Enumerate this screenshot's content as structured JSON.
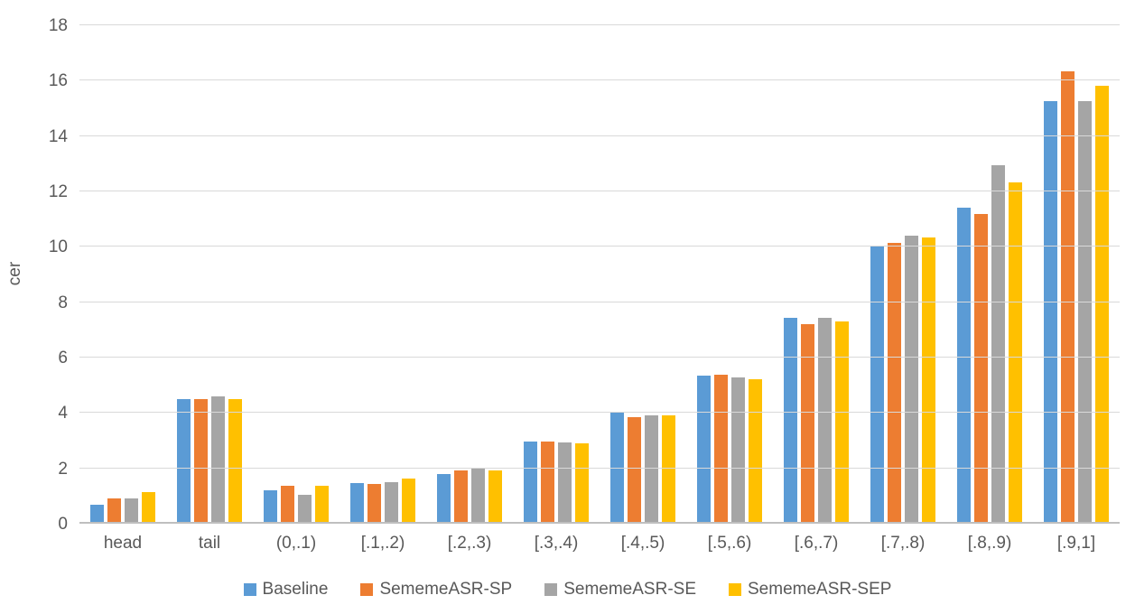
{
  "chart_data": {
    "type": "bar",
    "title": "",
    "xlabel": "",
    "ylabel": "cer",
    "ylim": [
      0,
      18
    ],
    "ytick_step": 2,
    "grid": true,
    "legend_position": "bottom",
    "gridline_color": "#d9d9d9",
    "axis_line_color": "#bfbfbf",
    "text_color": "#595959",
    "categories": [
      "head",
      "tail",
      "(0,.1)",
      "[.1,.2)",
      "[.2,.3)",
      "[.3,.4)",
      "[.4,.5)",
      "[.5,.6)",
      "[.6,.7)",
      "[.7,.8)",
      "[.8,.9)",
      "[.9,1]"
    ],
    "series": [
      {
        "name": "Baseline",
        "color": "#5B9BD5",
        "values": [
          0.7,
          4.5,
          1.2,
          1.47,
          1.78,
          2.98,
          4.0,
          5.35,
          7.45,
          10.0,
          11.4,
          15.25
        ]
      },
      {
        "name": "SememeASR-SP",
        "color": "#ED7D31",
        "values": [
          0.92,
          4.5,
          1.38,
          1.45,
          1.92,
          2.97,
          3.85,
          5.37,
          7.2,
          10.15,
          11.2,
          16.35
        ]
      },
      {
        "name": "SememeASR-SE",
        "color": "#A5A5A5",
        "values": [
          0.91,
          4.6,
          1.05,
          1.49,
          2.0,
          2.95,
          3.9,
          5.28,
          7.45,
          10.4,
          12.93,
          15.25
        ]
      },
      {
        "name": "SememeASR-SEP",
        "color": "#FFC000",
        "values": [
          1.15,
          4.5,
          1.37,
          1.62,
          1.92,
          2.9,
          3.92,
          5.22,
          7.3,
          10.33,
          12.33,
          15.8
        ]
      }
    ]
  }
}
